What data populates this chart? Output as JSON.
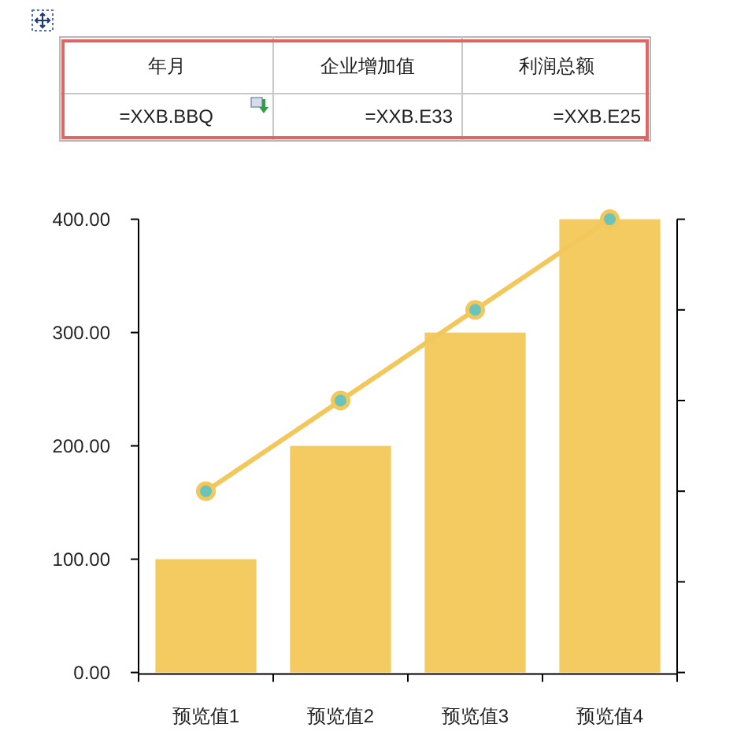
{
  "chart_data": [
    {
      "type": "other",
      "categories": [
        "年月",
        "企业增加值",
        "利润总额"
      ],
      "annotations": [
        "=XXB.BBQ",
        "=XXB.E33",
        "=XXB.E25"
      ]
    },
    {
      "type": "bar",
      "categories": [
        "预览值1",
        "预览值2",
        "预览值3",
        "预览值4"
      ],
      "series": [
        {
          "color": "#f4cb60",
          "values": [
            100,
            200,
            300,
            400
          ]
        },
        {
          "type": "line",
          "color": "#f2c75c",
          "colors": [
            "#6cc3b9",
            "#6cc3b9",
            "#6cc3b9",
            "#6cc3b9"
          ],
          "marker": "circle",
          "values": [
            160,
            240,
            320,
            400
          ]
        }
      ],
      "ylim": [
        0,
        400
      ],
      "yticks": [
        {
          "value": 0,
          "label": "0.00"
        },
        {
          "value": 100,
          "label": "100.00"
        },
        {
          "value": 200,
          "label": "200.00"
        },
        {
          "value": 300,
          "label": "300.00"
        },
        {
          "value": 400,
          "label": "400.00"
        }
      ]
    }
  ]
}
